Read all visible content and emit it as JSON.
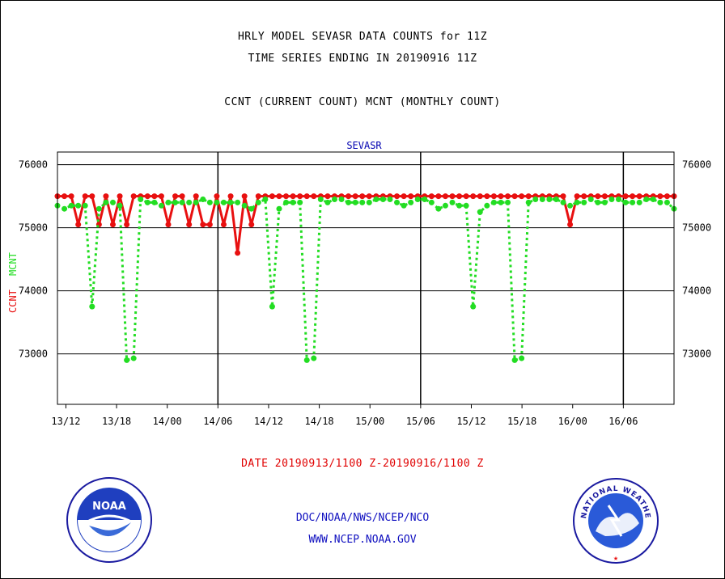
{
  "header": {
    "title_line1": "HRLY MODEL SEVASR DATA COUNTS for 11Z",
    "title_line2": "TIME SERIES ENDING IN 20190916 11Z",
    "legend_line": "CCNT (CURRENT COUNT) MCNT (MONTHLY COUNT)",
    "panel_label": "SEVASR"
  },
  "footer": {
    "date_range": "DATE 20190913/1100 Z-20190916/1100 Z",
    "org_path": "DOC/NOAA/NWS/NCEP/NCO",
    "url": "WWW.NCEP.NOAA.GOV",
    "noaa_logo_text": "NOAA",
    "nws_logo_text": "NATIONAL WEATHER SERVICE"
  },
  "colors": {
    "ccnt": "#e81010",
    "mcnt": "#22dd22",
    "axis": "#000000",
    "frame_text": "#0000b0"
  },
  "chart_data": {
    "type": "line",
    "ylabel_left": [
      "CCNT",
      "MCNT"
    ],
    "ylim": [
      72200,
      76200
    ],
    "yticks": [
      73000,
      74000,
      75000,
      76000
    ],
    "ytick_labels": [
      "73000",
      "74000",
      "75000",
      "76000"
    ],
    "xlim": [
      -1,
      72
    ],
    "xticks": [
      0,
      6,
      12,
      18,
      24,
      30,
      36,
      42,
      48,
      54,
      60,
      66
    ],
    "xtick_labels": [
      "13/12",
      "13/18",
      "14/00",
      "14/06",
      "14/12",
      "14/18",
      "15/00",
      "15/06",
      "15/12",
      "15/18",
      "16/00",
      "16/06"
    ],
    "day_dividers": [
      18,
      42,
      66
    ],
    "grid": "horizontal",
    "series": [
      {
        "name": "CCNT",
        "style": "solid",
        "values": [
          75500,
          75500,
          75500,
          75050,
          75500,
          75500,
          75050,
          75500,
          75050,
          75500,
          75050,
          75500,
          75500,
          75500,
          75500,
          75500,
          75050,
          75500,
          75500,
          75050,
          75500,
          75050,
          75050,
          75500,
          75050,
          75500,
          74600,
          75500,
          75050,
          75500,
          75500,
          75500,
          75500,
          75500,
          75500,
          75500,
          75500,
          75500,
          75500,
          75500,
          75500,
          75500,
          75500,
          75500,
          75500,
          75500,
          75500,
          75500,
          75500,
          75500,
          75500,
          75500,
          75500,
          75500,
          75500,
          75500,
          75500,
          75500,
          75500,
          75500,
          75500,
          75500,
          75500,
          75500,
          75500,
          75500,
          75500,
          75500,
          75500,
          75500,
          75500,
          75500,
          75500,
          75500,
          75050,
          75500,
          75500,
          75500,
          75500,
          75500,
          75500,
          75500,
          75500,
          75500,
          75500,
          75500,
          75500,
          75500,
          75500,
          75500
        ]
      },
      {
        "name": "MCNT",
        "style": "dotted",
        "values": [
          75350,
          75300,
          75350,
          75350,
          75350,
          73750,
          75300,
          75400,
          75400,
          75350,
          72900,
          72930,
          75450,
          75400,
          75400,
          75350,
          75400,
          75400,
          75400,
          75400,
          75400,
          75450,
          75400,
          75400,
          75400,
          75400,
          75400,
          75350,
          75300,
          75400,
          75450,
          73750,
          75300,
          75400,
          75400,
          75400,
          72900,
          72930,
          75450,
          75400,
          75450,
          75450,
          75400,
          75400,
          75400,
          75400,
          75450,
          75450,
          75450,
          75400,
          75350,
          75400,
          75450,
          75450,
          75400,
          75300,
          75350,
          75400,
          75350,
          75350,
          73750,
          75250,
          75350,
          75400,
          75400,
          75400,
          72900,
          72930,
          75400,
          75450,
          75450,
          75450,
          75450,
          75400,
          75350,
          75400,
          75400,
          75450,
          75400,
          75400,
          75450,
          75450,
          75400,
          75400,
          75400,
          75450,
          75450,
          75400,
          75400,
          75300
        ]
      }
    ]
  }
}
